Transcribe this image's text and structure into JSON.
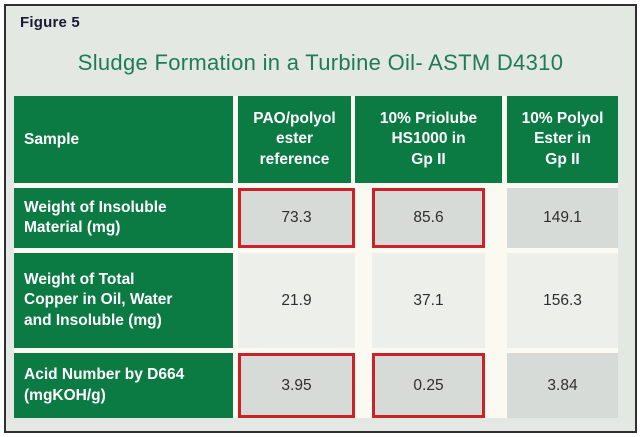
{
  "figure_label": "Figure 5",
  "title": "Sludge Formation in a Turbine Oil- ASTM D4310",
  "colors": {
    "header_green": "#0b7b43",
    "title_green": "#1e7b58",
    "highlight_red": "#cc2127",
    "cell_gray": "#d7dbd7",
    "cell_light": "#edefeb",
    "panel_background": "#e3e8e3",
    "frame_border": "#2f2f2f"
  },
  "table": {
    "headers": [
      "Sample",
      "PAO/polyol\nester\nreference",
      "10% Priolube\nHS1000 in\nGp II",
      "10% Polyol\nEster in\nGp II"
    ],
    "rows": [
      {
        "label": "Weight of Insoluble\nMaterial (mg)",
        "values": [
          "73.3",
          "85.6",
          "149.1"
        ]
      },
      {
        "label": "Weight of Total\nCopper in Oil, Water\nand Insoluble (mg)",
        "values": [
          "21.9",
          "37.1",
          "156.3"
        ]
      },
      {
        "label": "Acid Number by D664\n(mgKOH/g)",
        "values": [
          "3.95",
          "0.25",
          "3.84"
        ]
      }
    ]
  },
  "chart_data": {
    "type": "table",
    "title": "Sludge Formation in a Turbine Oil- ASTM D4310",
    "columns": [
      "Sample",
      "PAO/polyol ester reference",
      "10% Priolube HS1000 in Gp II",
      "10% Polyol Ester in Gp II"
    ],
    "rows": [
      {
        "sample": "Weight of Insoluble Material (mg)",
        "values": [
          73.3,
          85.6,
          149.1
        ],
        "red_outlined": [
          true,
          true,
          false
        ]
      },
      {
        "sample": "Weight of Total Copper in Oil, Water and Insoluble (mg)",
        "values": [
          21.9,
          37.1,
          156.3
        ],
        "red_outlined": [
          false,
          false,
          false
        ]
      },
      {
        "sample": "Acid Number by D664 (mgKOH/g)",
        "values": [
          3.95,
          0.25,
          3.84
        ],
        "red_outlined": [
          true,
          true,
          false
        ]
      }
    ]
  }
}
